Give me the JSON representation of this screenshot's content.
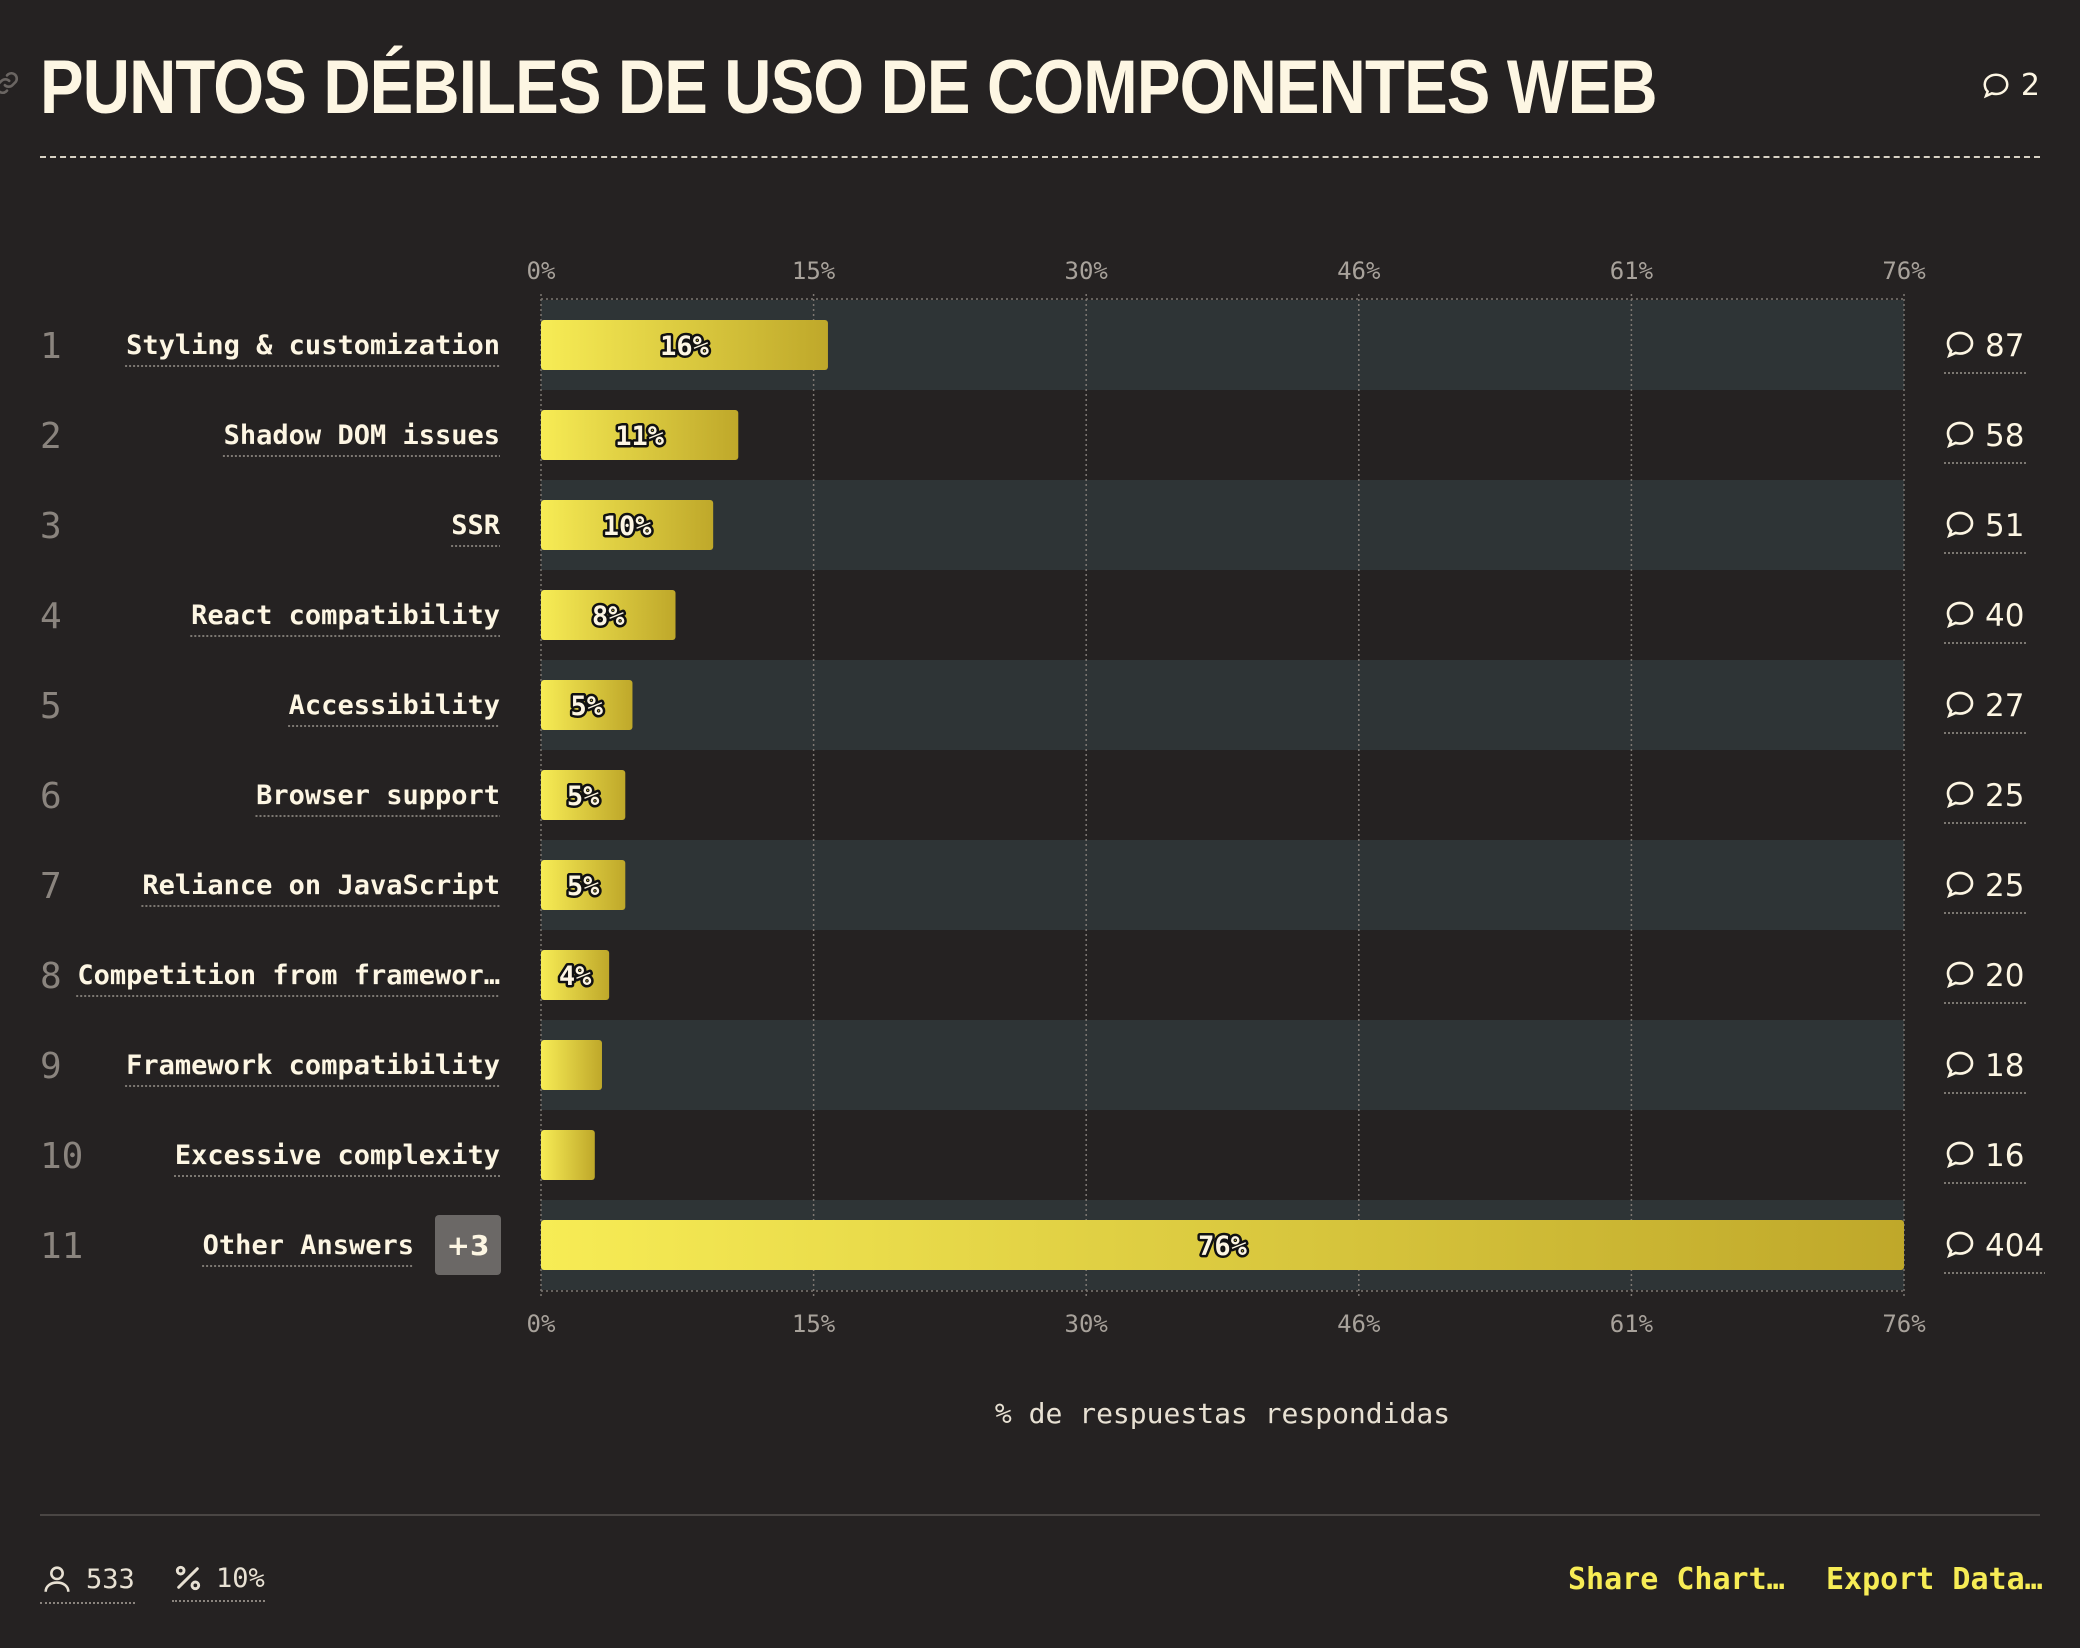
{
  "header": {
    "title": "PUNTOS DÉBILES DE USO DE COMPONENTES WEB",
    "comment_count": "2"
  },
  "chart_data": {
    "type": "bar",
    "orientation": "horizontal",
    "title": "PUNTOS DÉBILES DE USO DE COMPONENTES WEB",
    "xlabel": "% de respuestas respondidas",
    "xlim": [
      0,
      76
    ],
    "x_ticks": [
      "0%",
      "15%",
      "30%",
      "46%",
      "61%",
      "76%"
    ],
    "grid": true,
    "rows": [
      {
        "rank": "1",
        "category": "Styling & customization",
        "value": 16,
        "label": "16%",
        "count": "87"
      },
      {
        "rank": "2",
        "category": "Shadow DOM issues",
        "value": 11,
        "label": "11%",
        "count": "58"
      },
      {
        "rank": "3",
        "category": "SSR",
        "value": 9.6,
        "label": "10%",
        "count": "51"
      },
      {
        "rank": "4",
        "category": "React compatibility",
        "value": 7.5,
        "label": "8%",
        "count": "40"
      },
      {
        "rank": "5",
        "category": "Accessibility",
        "value": 5.1,
        "label": "5%",
        "count": "27"
      },
      {
        "rank": "6",
        "category": "Browser support",
        "value": 4.7,
        "label": "5%",
        "count": "25"
      },
      {
        "rank": "7",
        "category": "Reliance on JavaScript",
        "value": 4.7,
        "label": "5%",
        "count": "25"
      },
      {
        "rank": "8",
        "category": "Competition from framewor…",
        "value": 3.8,
        "label": "4%",
        "count": "20"
      },
      {
        "rank": "9",
        "category": "Framework compatibility",
        "value": 3.4,
        "label": "",
        "count": "18"
      },
      {
        "rank": "10",
        "category": "Excessive complexity",
        "value": 3.0,
        "label": "",
        "count": "16"
      },
      {
        "rank": "11",
        "category": "Other Answers",
        "value": 76,
        "label": "76%",
        "count": "404",
        "badge": "+3"
      }
    ],
    "colors": {
      "bar_start": "#f7ec55",
      "bar_end": "#bfa82a",
      "band": "#2e3436",
      "background": "#252222"
    }
  },
  "footer": {
    "respondents": "533",
    "percent": "10%",
    "share_label": "Share Chart…",
    "export_label": "Export Data…"
  }
}
